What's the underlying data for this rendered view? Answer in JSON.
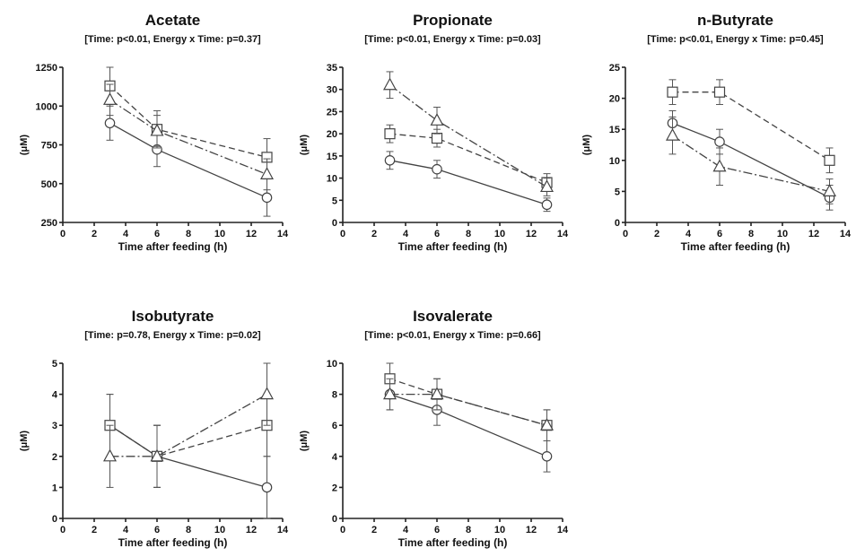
{
  "chart_data": [
    {
      "type": "line",
      "title": "Acetate",
      "subtitle": "[Time: p<0.01, Energy x Time: p=0.37]",
      "xlabel": "Time after feeding (h)",
      "ylabel": "(μM)",
      "xlim": [
        0,
        14
      ],
      "ylim": [
        250,
        1250
      ],
      "xticks": [
        0,
        2,
        4,
        6,
        8,
        10,
        12,
        14
      ],
      "yticks": [
        250,
        500,
        750,
        1000,
        1250
      ],
      "x": [
        3,
        6,
        13
      ],
      "series": [
        {
          "marker": "circle",
          "dash": "solid",
          "values": [
            890,
            720,
            410
          ],
          "errors": [
            110,
            110,
            120
          ]
        },
        {
          "marker": "square",
          "dash": "dash",
          "values": [
            1130,
            850,
            670
          ],
          "errors": [
            120,
            120,
            120
          ]
        },
        {
          "marker": "triangle",
          "dash": "dashdot",
          "values": [
            1040,
            840,
            560
          ],
          "errors": [
            100,
            100,
            100
          ]
        }
      ]
    },
    {
      "type": "line",
      "title": "Propionate",
      "subtitle": "[Time: p<0.01, Energy x Time: p=0.03]",
      "xlabel": "Time after feeding (h)",
      "ylabel": "(μM)",
      "xlim": [
        0,
        14
      ],
      "ylim": [
        0,
        35
      ],
      "xticks": [
        0,
        2,
        4,
        6,
        8,
        10,
        12,
        14
      ],
      "yticks": [
        0,
        5,
        10,
        15,
        20,
        25,
        30,
        35
      ],
      "x": [
        3,
        6,
        13
      ],
      "series": [
        {
          "marker": "circle",
          "dash": "solid",
          "values": [
            14,
            12,
            4
          ],
          "errors": [
            2,
            2,
            1.5
          ]
        },
        {
          "marker": "square",
          "dash": "dash",
          "values": [
            20,
            19,
            9
          ],
          "errors": [
            2,
            2,
            2
          ]
        },
        {
          "marker": "triangle",
          "dash": "dashdot",
          "values": [
            31,
            23,
            8
          ],
          "errors": [
            3,
            3,
            2
          ]
        }
      ]
    },
    {
      "type": "line",
      "title": "n-Butyrate",
      "subtitle": "[Time: p<0.01, Energy x Time: p=0.45]",
      "xlabel": "Time after feeding (h)",
      "ylabel": "(μM)",
      "xlim": [
        0,
        14
      ],
      "ylim": [
        0,
        25
      ],
      "xticks": [
        0,
        2,
        4,
        6,
        8,
        10,
        12,
        14
      ],
      "yticks": [
        0,
        5,
        10,
        15,
        20,
        25
      ],
      "x": [
        3,
        6,
        13
      ],
      "series": [
        {
          "marker": "circle",
          "dash": "solid",
          "values": [
            16,
            13,
            4
          ],
          "errors": [
            2,
            2,
            2
          ]
        },
        {
          "marker": "square",
          "dash": "dash",
          "values": [
            21,
            21,
            10
          ],
          "errors": [
            2,
            2,
            2
          ]
        },
        {
          "marker": "triangle",
          "dash": "dashdot",
          "values": [
            14,
            9,
            5
          ],
          "errors": [
            3,
            3,
            2
          ]
        }
      ]
    },
    {
      "type": "line",
      "title": "Isobutyrate",
      "subtitle": "[Time: p=0.78, Energy x Time: p=0.02]",
      "xlabel": "Time after feeding (h)",
      "ylabel": "(μM)",
      "xlim": [
        0,
        14
      ],
      "ylim": [
        0,
        5
      ],
      "xticks": [
        0,
        2,
        4,
        6,
        8,
        10,
        12,
        14
      ],
      "yticks": [
        0,
        1,
        2,
        3,
        4,
        5
      ],
      "x": [
        3,
        6,
        13
      ],
      "series": [
        {
          "marker": "circle",
          "dash": "solid",
          "values": [
            3,
            2,
            1
          ],
          "errors": [
            1,
            1,
            1
          ]
        },
        {
          "marker": "square",
          "dash": "dash",
          "values": [
            3,
            2,
            3
          ],
          "errors": [
            1,
            1,
            1
          ]
        },
        {
          "marker": "triangle",
          "dash": "dashdot",
          "values": [
            2,
            2,
            4
          ],
          "errors": [
            1,
            1,
            1
          ]
        }
      ]
    },
    {
      "type": "line",
      "title": "Isovalerate",
      "subtitle": "[Time: p<0.01, Energy x Time: p=0.66]",
      "xlabel": "Time after feeding (h)",
      "ylabel": "(μM)",
      "xlim": [
        0,
        14
      ],
      "ylim": [
        0,
        10
      ],
      "xticks": [
        0,
        2,
        4,
        6,
        8,
        10,
        12,
        14
      ],
      "yticks": [
        0,
        2,
        4,
        6,
        8,
        10
      ],
      "x": [
        3,
        6,
        13
      ],
      "series": [
        {
          "marker": "circle",
          "dash": "solid",
          "values": [
            8,
            7,
            4
          ],
          "errors": [
            1,
            1,
            1
          ]
        },
        {
          "marker": "square",
          "dash": "dash",
          "values": [
            9,
            8,
            6
          ],
          "errors": [
            1,
            1,
            1
          ]
        },
        {
          "marker": "triangle",
          "dash": "dashdot",
          "values": [
            8,
            8,
            6
          ],
          "errors": [
            1,
            1,
            1
          ]
        }
      ]
    }
  ]
}
